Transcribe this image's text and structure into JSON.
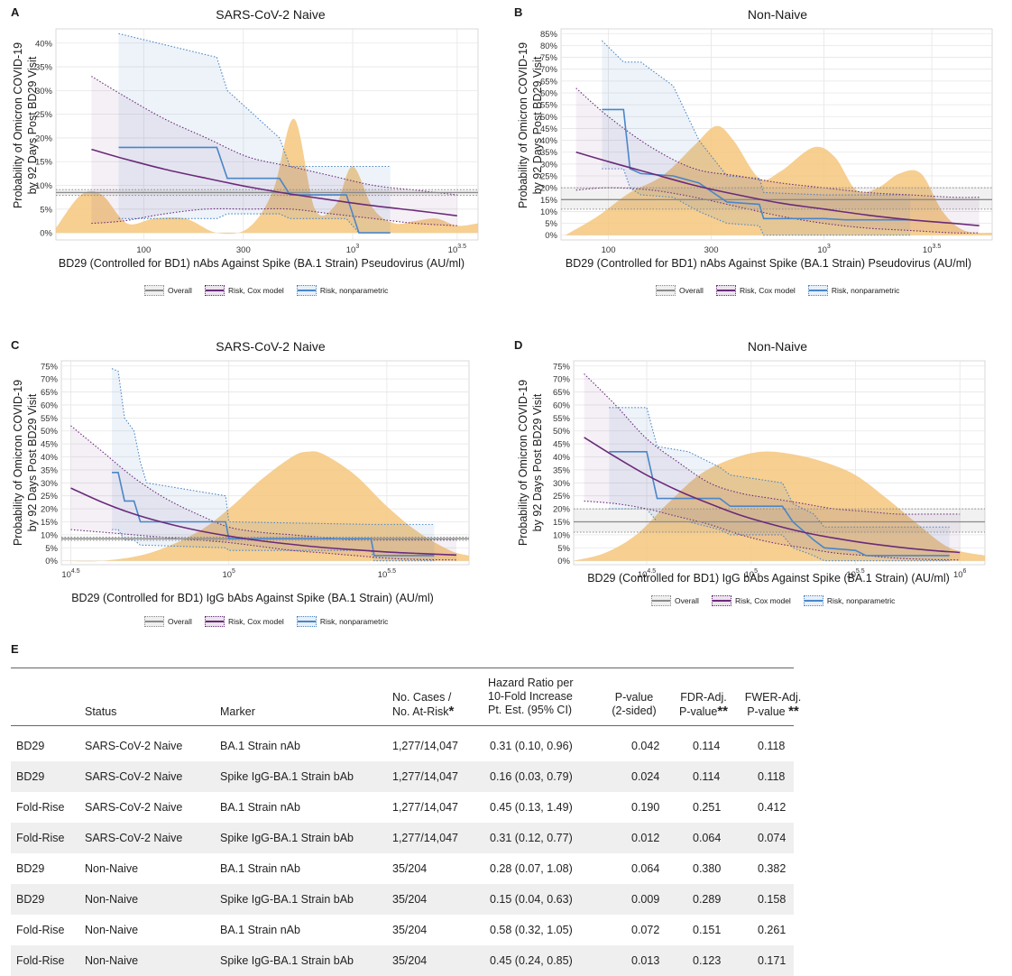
{
  "colors": {
    "overall": "#8a8a8a",
    "cox": "#6b2a7a",
    "nonparametric": "#4a86c8",
    "density": "#f5c77e",
    "grid": "#e6e6e6"
  },
  "legend": {
    "overall": "Overall",
    "cox": "Risk, Cox model",
    "nonparametric": "Risk, nonparametric"
  },
  "chart_data": [
    {
      "id": "A",
      "type": "line",
      "letter": "A",
      "title": "SARS-CoV-2 Naive",
      "ylabel_line1": "Probability of Omicron COVID-19",
      "ylabel_line2": "by 92 Days Post BD29 Visit",
      "xlabel": "BD29 (Controlled for BD1) nAbs Against Spike (BA.1 Strain) Pseudovirus (AU/ml)",
      "x_scale": "log10",
      "xlim": [
        1.58,
        3.6
      ],
      "ylim": [
        -0.015,
        0.43
      ],
      "yticks": [
        0,
        0.05,
        0.1,
        0.15,
        0.2,
        0.25,
        0.3,
        0.35,
        0.4
      ],
      "ytick_labels": [
        "0%",
        "5%",
        "10%",
        "15%",
        "20%",
        "25%",
        "30%",
        "35%",
        "40%"
      ],
      "xticks": [
        2,
        2.477,
        3,
        3.5
      ],
      "xtick_labels": [
        {
          "base": "100",
          "exp": ""
        },
        {
          "base": "300",
          "exp": ""
        },
        {
          "base": "10",
          "exp": "3"
        },
        {
          "base": "10",
          "exp": "3.5"
        }
      ],
      "overall": {
        "value": 0.085,
        "lower": 0.079,
        "upper": 0.091
      },
      "cox": {
        "x": [
          1.75,
          1.9,
          2.1,
          2.3,
          2.5,
          2.7,
          2.9,
          3.1,
          3.3,
          3.5
        ],
        "y": [
          0.176,
          0.157,
          0.134,
          0.115,
          0.097,
          0.082,
          0.069,
          0.057,
          0.047,
          0.036
        ],
        "lower": [
          0.02,
          0.025,
          0.04,
          0.05,
          0.05,
          0.05,
          0.04,
          0.03,
          0.02,
          0.015
        ],
        "upper": [
          0.33,
          0.29,
          0.24,
          0.2,
          0.16,
          0.14,
          0.12,
          0.1,
          0.09,
          0.08
        ]
      },
      "nonparametric": {
        "x": [
          1.88,
          2.35,
          2.4,
          2.65,
          2.7,
          2.97,
          3.03,
          3.18
        ],
        "y": [
          0.18,
          0.18,
          0.115,
          0.115,
          0.08,
          0.08,
          0.0,
          0.0
        ],
        "lower": [
          0.03,
          0.03,
          0.04,
          0.04,
          0.03,
          0.03,
          0.0,
          0.0
        ],
        "upper": [
          0.42,
          0.37,
          0.3,
          0.2,
          0.14,
          0.14,
          0.14,
          0.14
        ]
      },
      "density": {
        "x": [
          1.58,
          1.7,
          1.8,
          1.92,
          2.05,
          2.2,
          2.35,
          2.5,
          2.62,
          2.72,
          2.82,
          2.92,
          3.0,
          3.1,
          3.2,
          3.3,
          3.4,
          3.5,
          3.6
        ],
        "y": [
          0.01,
          0.08,
          0.08,
          0.02,
          0.03,
          0.03,
          0.0,
          0.01,
          0.09,
          0.24,
          0.05,
          0.06,
          0.14,
          0.05,
          0.02,
          0.025,
          0.03,
          0.015,
          0.02
        ]
      }
    },
    {
      "id": "B",
      "type": "line",
      "letter": "B",
      "title": "Non-Naive",
      "ylabel_line1": "Probability of Omicron COVID-19",
      "ylabel_line2": "by 92 Days Post BD29 Visit",
      "xlabel": "BD29 (Controlled for BD1) nAbs Against Spike (BA.1 Strain) Pseudovirus (AU/ml)",
      "x_scale": "log10",
      "xlim": [
        1.78,
        3.78
      ],
      "ylim": [
        -0.02,
        0.87
      ],
      "yticks": [
        0,
        0.05,
        0.1,
        0.15,
        0.2,
        0.25,
        0.3,
        0.35,
        0.4,
        0.45,
        0.5,
        0.55,
        0.6,
        0.65,
        0.7,
        0.75,
        0.8,
        0.85
      ],
      "ytick_labels": [
        "0%",
        "5%",
        "10%",
        "15%",
        "20%",
        "25%",
        "30%",
        "35%",
        "40%",
        "45%",
        "50%",
        "55%",
        "60%",
        "65%",
        "70%",
        "75%",
        "80%",
        "85%"
      ],
      "xticks": [
        2,
        2.477,
        3,
        3.5
      ],
      "xtick_labels": [
        {
          "base": "100",
          "exp": ""
        },
        {
          "base": "300",
          "exp": ""
        },
        {
          "base": "10",
          "exp": "3"
        },
        {
          "base": "10",
          "exp": "3.5"
        }
      ],
      "overall": {
        "value": 0.15,
        "lower": 0.11,
        "upper": 0.2
      },
      "cox": {
        "x": [
          1.85,
          2.0,
          2.2,
          2.4,
          2.6,
          2.8,
          3.0,
          3.2,
          3.4,
          3.6,
          3.72
        ],
        "y": [
          0.35,
          0.31,
          0.26,
          0.21,
          0.17,
          0.135,
          0.11,
          0.085,
          0.065,
          0.05,
          0.04
        ],
        "lower": [
          0.19,
          0.2,
          0.19,
          0.16,
          0.12,
          0.08,
          0.05,
          0.03,
          0.02,
          0.01,
          0.01
        ],
        "upper": [
          0.62,
          0.5,
          0.37,
          0.28,
          0.25,
          0.22,
          0.2,
          0.18,
          0.17,
          0.16,
          0.16
        ]
      },
      "nonparametric": {
        "x": [
          1.97,
          2.07,
          2.1,
          2.15,
          2.3,
          2.42,
          2.55,
          2.7,
          2.72,
          3.0,
          3.1,
          3.4
        ],
        "y": [
          0.53,
          0.53,
          0.28,
          0.26,
          0.25,
          0.22,
          0.14,
          0.13,
          0.07,
          0.07,
          0.065,
          0.065
        ],
        "lower": [
          0.28,
          0.28,
          0.2,
          0.17,
          0.16,
          0.1,
          0.05,
          0.04,
          0.0,
          0.0,
          0.0,
          0.0
        ],
        "upper": [
          0.82,
          0.73,
          0.73,
          0.73,
          0.63,
          0.4,
          0.25,
          0.24,
          0.18,
          0.17,
          0.17,
          0.17
        ]
      },
      "density": {
        "x": [
          1.8,
          1.95,
          2.1,
          2.25,
          2.4,
          2.5,
          2.58,
          2.7,
          2.8,
          2.95,
          3.05,
          3.15,
          3.25,
          3.35,
          3.45,
          3.55,
          3.65,
          3.78
        ],
        "y": [
          0.0,
          0.08,
          0.18,
          0.25,
          0.38,
          0.46,
          0.4,
          0.24,
          0.27,
          0.37,
          0.33,
          0.19,
          0.2,
          0.26,
          0.26,
          0.1,
          0.02,
          0.01
        ]
      }
    },
    {
      "id": "C",
      "type": "line",
      "letter": "C",
      "title": "SARS-CoV-2 Naive",
      "ylabel_line1": "Probability of Omicron COVID-19",
      "ylabel_line2": "by 92 Days Post BD29 Visit",
      "xlabel": "BD29 (Controlled for BD1) IgG bAbs Against Spike (BA.1 Strain) (AU/ml)",
      "x_scale": "log10",
      "xlim": [
        4.47,
        5.76
      ],
      "ylim": [
        -0.015,
        0.77
      ],
      "yticks": [
        0,
        0.05,
        0.1,
        0.15,
        0.2,
        0.25,
        0.3,
        0.35,
        0.4,
        0.45,
        0.5,
        0.55,
        0.6,
        0.65,
        0.7,
        0.75
      ],
      "ytick_labels": [
        "0%",
        "5%",
        "10%",
        "15%",
        "20%",
        "25%",
        "30%",
        "35%",
        "40%",
        "45%",
        "50%",
        "55%",
        "60%",
        "65%",
        "70%",
        "75%"
      ],
      "xticks": [
        4.5,
        5,
        5.5
      ],
      "xtick_labels": [
        {
          "base": "10",
          "exp": "4.5"
        },
        {
          "base": "10",
          "exp": "5"
        },
        {
          "base": "10",
          "exp": "5.5"
        }
      ],
      "overall": {
        "value": 0.085,
        "lower": 0.079,
        "upper": 0.091
      },
      "cox": {
        "x": [
          4.5,
          4.6,
          4.7,
          4.8,
          4.9,
          5.0,
          5.1,
          5.2,
          5.3,
          5.4,
          5.5,
          5.6,
          5.72
        ],
        "y": [
          0.28,
          0.225,
          0.18,
          0.145,
          0.117,
          0.095,
          0.077,
          0.063,
          0.051,
          0.042,
          0.034,
          0.028,
          0.022
        ],
        "lower": [
          0.12,
          0.11,
          0.1,
          0.09,
          0.08,
          0.07,
          0.055,
          0.04,
          0.03,
          0.02,
          0.01,
          0.005,
          0.003
        ],
        "upper": [
          0.52,
          0.42,
          0.32,
          0.24,
          0.18,
          0.13,
          0.11,
          0.1,
          0.09,
          0.08,
          0.08,
          0.08,
          0.08
        ]
      },
      "nonparametric": {
        "x": [
          4.63,
          4.65,
          4.67,
          4.7,
          4.72,
          4.74,
          4.99,
          5.0,
          5.45,
          5.46,
          5.65
        ],
        "y": [
          0.34,
          0.34,
          0.23,
          0.23,
          0.15,
          0.15,
          0.15,
          0.085,
          0.085,
          0.02,
          0.02
        ],
        "lower": [
          0.12,
          0.12,
          0.08,
          0.08,
          0.06,
          0.06,
          0.05,
          0.04,
          0.04,
          0.0,
          0.0
        ],
        "upper": [
          0.74,
          0.73,
          0.55,
          0.5,
          0.38,
          0.3,
          0.25,
          0.15,
          0.14,
          0.14,
          0.14
        ]
      },
      "density": {
        "x": [
          4.47,
          4.6,
          4.75,
          4.9,
          5.0,
          5.1,
          5.2,
          5.25,
          5.3,
          5.4,
          5.5,
          5.6,
          5.7,
          5.76
        ],
        "y": [
          0.0,
          0.0,
          0.03,
          0.11,
          0.2,
          0.31,
          0.4,
          0.42,
          0.41,
          0.33,
          0.21,
          0.11,
          0.04,
          0.02
        ]
      }
    },
    {
      "id": "D",
      "type": "line",
      "letter": "D",
      "title": "Non-Naive",
      "ylabel_line1": "Probability of Omicron COVID-19",
      "ylabel_line2": "by 92 Days Post BD29 Visit",
      "xlabel": "BD29 (Controlled for BD1) IgG bAbs Against Spike (BA.1 Strain) (AU/ml)",
      "x_scale": "log10",
      "xlim": [
        4.15,
        6.12
      ],
      "ylim": [
        -0.015,
        0.77
      ],
      "yticks": [
        0,
        0.05,
        0.1,
        0.15,
        0.2,
        0.25,
        0.3,
        0.35,
        0.4,
        0.45,
        0.5,
        0.55,
        0.6,
        0.65,
        0.7,
        0.75
      ],
      "ytick_labels": [
        "0%",
        "5%",
        "10%",
        "15%",
        "20%",
        "25%",
        "30%",
        "35%",
        "40%",
        "45%",
        "50%",
        "55%",
        "60%",
        "65%",
        "70%",
        "75%"
      ],
      "xticks": [
        4.5,
        5,
        5.5,
        6
      ],
      "xtick_labels": [
        {
          "base": "10",
          "exp": "4.5"
        },
        {
          "base": "10",
          "exp": "5"
        },
        {
          "base": "10",
          "exp": "5.5"
        },
        {
          "base": "10",
          "exp": "6"
        }
      ],
      "overall": {
        "value": 0.15,
        "lower": 0.11,
        "upper": 0.2
      },
      "cox": {
        "x": [
          4.2,
          4.35,
          4.5,
          4.65,
          4.8,
          4.95,
          5.1,
          5.25,
          5.4,
          5.55,
          5.7,
          5.85,
          6.0
        ],
        "y": [
          0.475,
          0.4,
          0.33,
          0.27,
          0.22,
          0.175,
          0.14,
          0.11,
          0.087,
          0.068,
          0.053,
          0.041,
          0.032
        ],
        "lower": [
          0.23,
          0.22,
          0.2,
          0.17,
          0.14,
          0.1,
          0.07,
          0.05,
          0.03,
          0.02,
          0.01,
          0.005,
          0.003
        ],
        "upper": [
          0.72,
          0.6,
          0.47,
          0.38,
          0.3,
          0.26,
          0.24,
          0.22,
          0.2,
          0.19,
          0.18,
          0.18,
          0.18
        ]
      },
      "nonparametric": {
        "x": [
          4.32,
          4.5,
          4.55,
          4.7,
          4.85,
          4.9,
          5.15,
          5.2,
          5.3,
          5.35,
          5.5,
          5.55,
          5.95
        ],
        "y": [
          0.42,
          0.42,
          0.24,
          0.24,
          0.24,
          0.21,
          0.21,
          0.15,
          0.08,
          0.05,
          0.04,
          0.02,
          0.02
        ],
        "lower": [
          0.2,
          0.2,
          0.15,
          0.15,
          0.12,
          0.1,
          0.1,
          0.05,
          0.02,
          0.0,
          0.0,
          0.0,
          0.0
        ],
        "upper": [
          0.59,
          0.59,
          0.44,
          0.42,
          0.36,
          0.33,
          0.3,
          0.22,
          0.18,
          0.13,
          0.13,
          0.13,
          0.13
        ]
      },
      "density": {
        "x": [
          4.15,
          4.3,
          4.45,
          4.6,
          4.75,
          4.9,
          5.05,
          5.2,
          5.35,
          5.5,
          5.65,
          5.8,
          5.95,
          6.12
        ],
        "y": [
          0.0,
          0.03,
          0.1,
          0.22,
          0.33,
          0.39,
          0.42,
          0.41,
          0.38,
          0.33,
          0.24,
          0.14,
          0.05,
          0.02
        ]
      }
    }
  ],
  "table": {
    "letter": "E",
    "headers": {
      "status": "Status",
      "marker": "Marker",
      "cases_l1": "No. Cases /",
      "cases_l2": "No. At-Risk",
      "cases_mark": "*",
      "hr_l1": "Hazard Ratio per",
      "hr_l2": "10-Fold Increase",
      "hr_l3": "Pt. Est. (95% CI)",
      "p_l1": "P-value",
      "p_l2": "(2-sided)",
      "fdr_l1": "FDR-Adj.",
      "fdr_l2": "P-value",
      "fdr_mark": "**",
      "fwer_l1": "FWER-Adj.",
      "fwer_l2": "P-value",
      "fwer_mark": "**"
    },
    "rows": [
      {
        "timepoint": "BD29",
        "status": "SARS-CoV-2 Naive",
        "marker": "BA.1 Strain nAb",
        "cases": "1,277/14,047",
        "hr": "0.31 (0.10, 0.96)",
        "p": "0.042",
        "fdr": "0.114",
        "fwer": "0.118"
      },
      {
        "timepoint": "BD29",
        "status": "SARS-CoV-2 Naive",
        "marker": "Spike IgG-BA.1 Strain bAb",
        "cases": "1,277/14,047",
        "hr": "0.16 (0.03, 0.79)",
        "p": "0.024",
        "fdr": "0.114",
        "fwer": "0.118"
      },
      {
        "timepoint": "Fold-Rise",
        "status": "SARS-CoV-2 Naive",
        "marker": "BA.1 Strain nAb",
        "cases": "1,277/14,047",
        "hr": "0.45 (0.13, 1.49)",
        "p": "0.190",
        "fdr": "0.251",
        "fwer": "0.412"
      },
      {
        "timepoint": "Fold-Rise",
        "status": "SARS-CoV-2 Naive",
        "marker": "Spike IgG-BA.1 Strain bAb",
        "cases": "1,277/14,047",
        "hr": "0.31 (0.12, 0.77)",
        "p": "0.012",
        "fdr": "0.064",
        "fwer": "0.074"
      },
      {
        "timepoint": "BD29",
        "status": "Non-Naive",
        "marker": "BA.1 Strain nAb",
        "cases": "35/204",
        "hr": "0.28 (0.07, 1.08)",
        "p": "0.064",
        "fdr": "0.380",
        "fwer": "0.382"
      },
      {
        "timepoint": "BD29",
        "status": "Non-Naive",
        "marker": "Spike IgG-BA.1 Strain bAb",
        "cases": "35/204",
        "hr": "0.15 (0.04, 0.63)",
        "p": "0.009",
        "fdr": "0.289",
        "fwer": "0.158"
      },
      {
        "timepoint": "Fold-Rise",
        "status": "Non-Naive",
        "marker": "BA.1 Strain nAb",
        "cases": "35/204",
        "hr": "0.58 (0.32, 1.05)",
        "p": "0.072",
        "fdr": "0.151",
        "fwer": "0.261"
      },
      {
        "timepoint": "Fold-Rise",
        "status": "Non-Naive",
        "marker": "Spike IgG-BA.1 Strain bAb",
        "cases": "35/204",
        "hr": "0.45 (0.24, 0.85)",
        "p": "0.013",
        "fdr": "0.123",
        "fwer": "0.171"
      }
    ]
  }
}
